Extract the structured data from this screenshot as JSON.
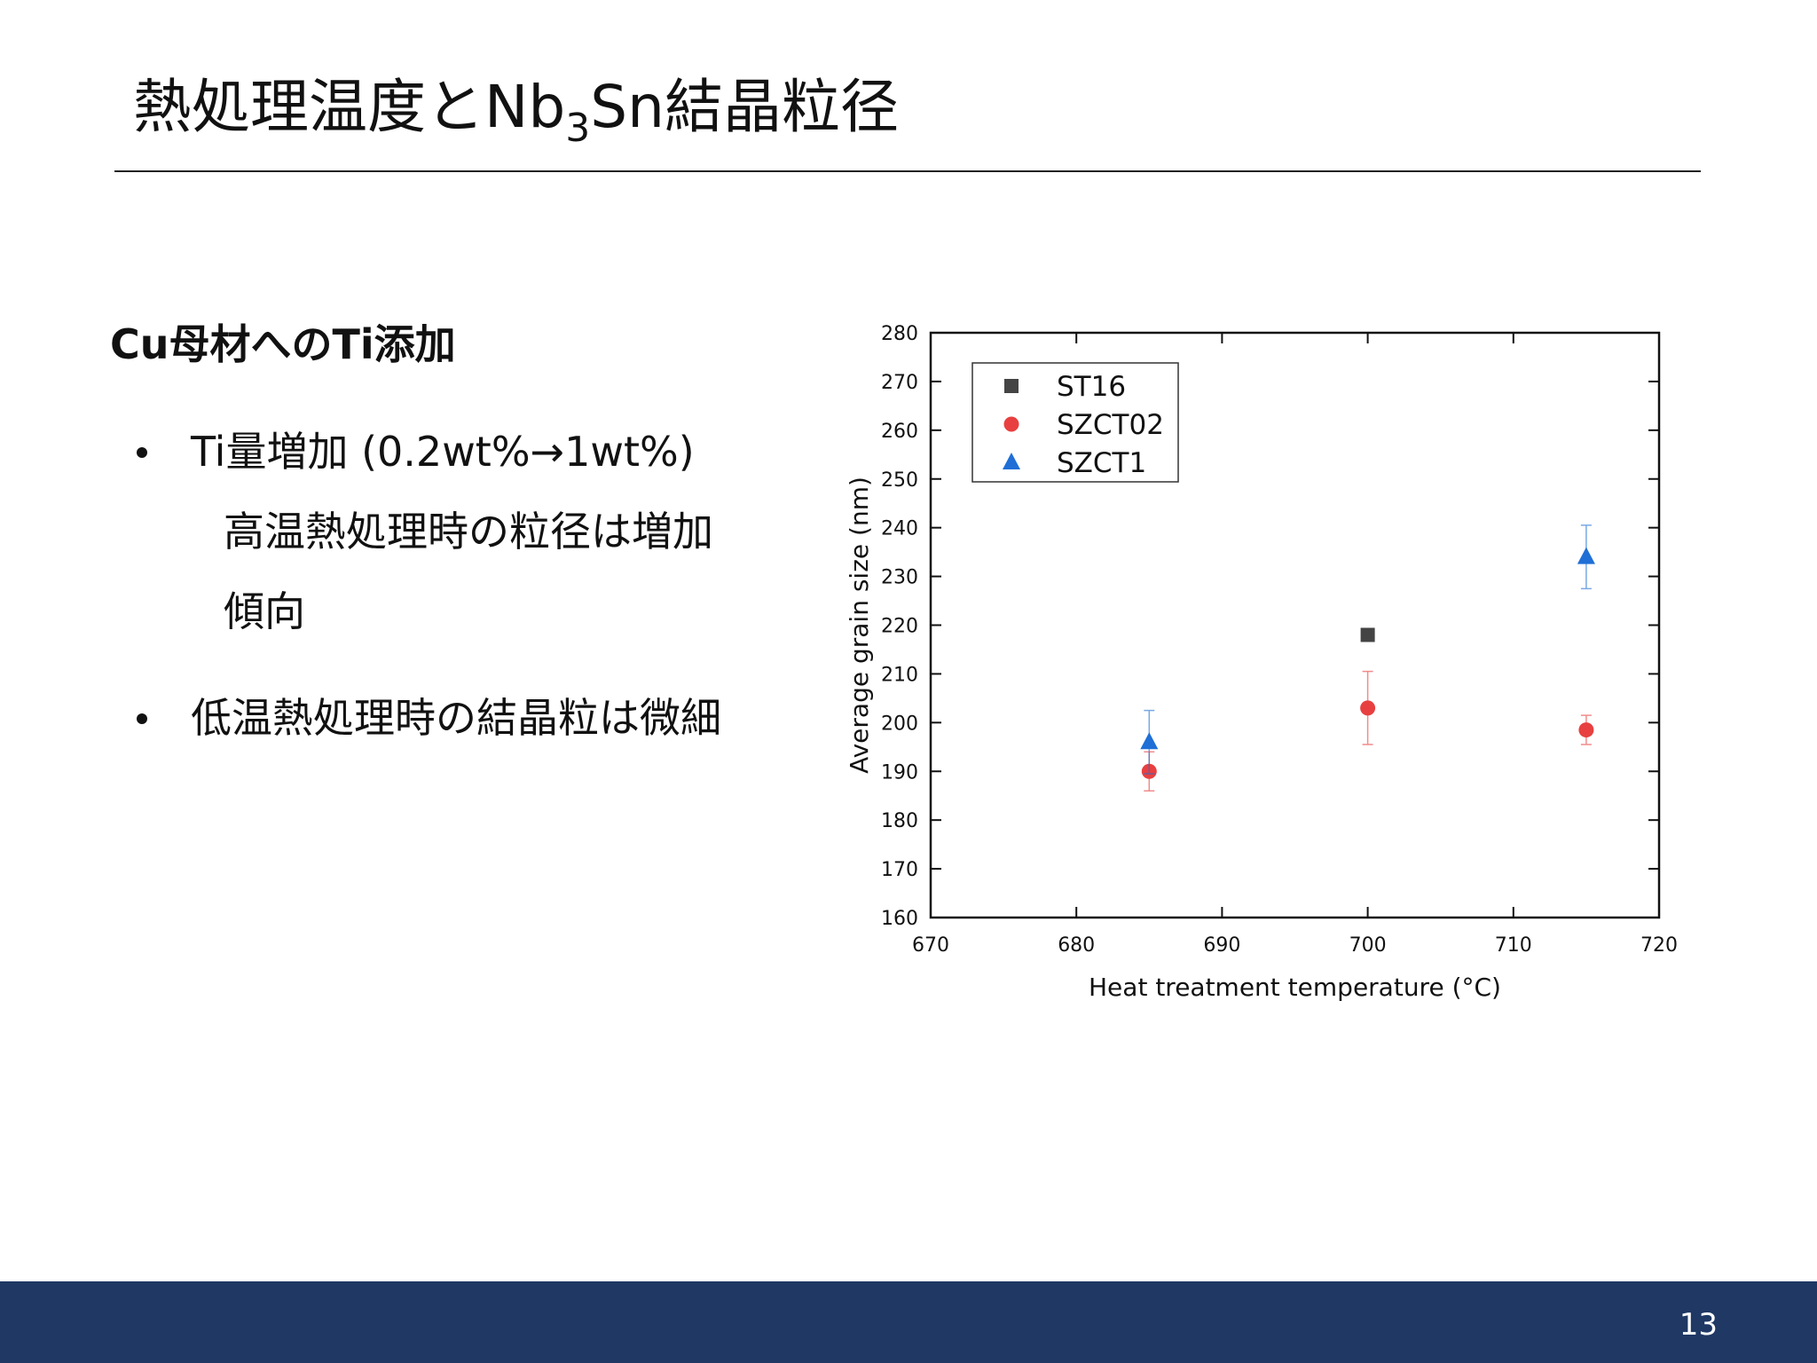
{
  "header": {
    "title_parts": [
      "熱処理温度とNb",
      "3",
      "Sn結晶粒径"
    ]
  },
  "body": {
    "heading": "Cu母材へのTi添加",
    "bullets": [
      {
        "lines": [
          "Ti量増加 (0.2wt%→1wt%)",
          "高温熱処理時の粒径は増加",
          "傾向"
        ]
      },
      {
        "lines": [
          "低温熱処理時の結晶粒は微細"
        ]
      }
    ]
  },
  "footer": {
    "page_number": "13"
  },
  "chart_data": {
    "type": "scatter",
    "x_label": "Heat treatment temperature (°C)",
    "y_label": "Average grain size (nm)",
    "xlim": [
      670,
      720
    ],
    "xticks": [
      670,
      680,
      690,
      700,
      710,
      720
    ],
    "ylim": [
      160,
      280
    ],
    "yticks": [
      160,
      170,
      180,
      190,
      200,
      210,
      220,
      230,
      240,
      250,
      260,
      270,
      280
    ],
    "legend": "upper left",
    "series": [
      {
        "name": "ST16",
        "color": "#444444",
        "marker": "square",
        "x": [
          700
        ],
        "values": [
          218
        ],
        "errors": [
          null
        ]
      },
      {
        "name": "SZCT02",
        "color": "#e84040",
        "marker": "circle",
        "x": [
          685,
          700,
          715
        ],
        "values": [
          190,
          203,
          198.5
        ],
        "errors": [
          4,
          7.5,
          3
        ]
      },
      {
        "name": "SZCT1",
        "color": "#1f6fd6",
        "marker": "triangle",
        "x": [
          685,
          715
        ],
        "values": [
          196,
          234
        ],
        "errors": [
          6.5,
          6.5
        ]
      }
    ]
  }
}
